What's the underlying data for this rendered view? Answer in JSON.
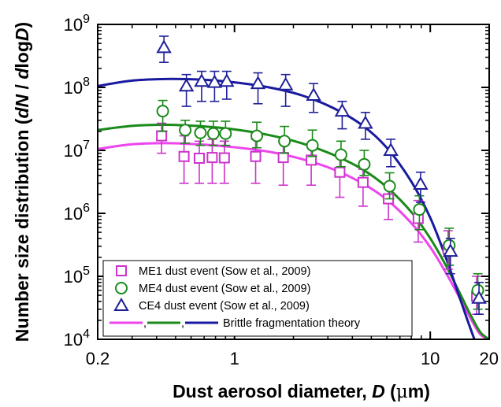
{
  "chart_data": {
    "type": "scatter",
    "xlabel": {
      "text": "Dust aerosol diameter, ",
      "var": "D",
      "unit_open": " (",
      "unit_mu": "μ",
      "unit_rest": "m)"
    },
    "ylabel": {
      "text": "Number size distribution (",
      "num": "dN",
      "sep": " / ",
      "den_pre": "d",
      "den_log": "log",
      "den_var": "D",
      "close": ")"
    },
    "x_scale": "log",
    "y_scale": "log",
    "xlim": [
      0.2,
      20
    ],
    "ylim": [
      10000,
      1000000000
    ],
    "x_ticks": [
      {
        "v": 0.2,
        "label": "0.2"
      },
      {
        "v": 1,
        "label": "1"
      },
      {
        "v": 10,
        "label": "10"
      },
      {
        "v": 20,
        "label": "20"
      }
    ],
    "y_ticks": [
      {
        "v": 10000,
        "base": "10",
        "exp": "4"
      },
      {
        "v": 100000,
        "base": "10",
        "exp": "5"
      },
      {
        "v": 1000000,
        "base": "10",
        "exp": "6"
      },
      {
        "v": 10000000,
        "base": "10",
        "exp": "7"
      },
      {
        "v": 100000000,
        "base": "10",
        "exp": "8"
      },
      {
        "v": 1000000000,
        "base": "10",
        "exp": "9"
      }
    ],
    "grid": false,
    "legend_position": "bottom-left",
    "series": [
      {
        "name": "ME1 dust event (Sow et al., 2009)",
        "marker": "square",
        "color": "#cc33cc",
        "x": [
          0.43,
          0.56,
          0.67,
          0.78,
          0.9,
          1.3,
          1.8,
          2.5,
          3.5,
          4.6,
          6.2,
          8.8,
          12.5,
          17.5
        ],
        "y": [
          17000000,
          8000000,
          7500000,
          7700000,
          7600000,
          8000000,
          7700000,
          7000000,
          4500000,
          3100000,
          1700000,
          830000,
          270000,
          48000
        ],
        "err": [
          [
            9000000,
            27000000
          ],
          [
            3000000,
            17000000
          ],
          [
            3000000,
            14000000
          ],
          [
            3000000,
            15000000
          ],
          [
            3000000,
            14000000
          ],
          [
            3000000,
            15000000
          ],
          [
            2800000,
            14000000
          ],
          [
            2800000,
            13000000
          ],
          [
            1800000,
            8000000
          ],
          [
            1300000,
            5000000
          ],
          [
            800000,
            3000000
          ],
          [
            350000,
            1600000
          ],
          [
            130000,
            530000
          ],
          [
            25000,
            100000
          ]
        ]
      },
      {
        "name": "ME4 dust event (Sow et al., 2009)",
        "marker": "circle",
        "color": "#1a8a1a",
        "x": [
          0.43,
          0.56,
          0.67,
          0.78,
          0.9,
          1.3,
          1.8,
          2.5,
          3.5,
          4.6,
          6.2,
          8.8,
          12.5,
          17.5
        ],
        "y": [
          42000000,
          21000000,
          19000000,
          18500000,
          18500000,
          17000000,
          14000000,
          12000000,
          8500000,
          6000000,
          2700000,
          1150000,
          310000,
          60000
        ],
        "err": [
          [
            20000000,
            62000000
          ],
          [
            13000000,
            30000000
          ],
          [
            12000000,
            29000000
          ],
          [
            12000000,
            29000000
          ],
          [
            12000000,
            29000000
          ],
          [
            11000000,
            28000000
          ],
          [
            9000000,
            24000000
          ],
          [
            8000000,
            21000000
          ],
          [
            5500000,
            14000000
          ],
          [
            4000000,
            10000000
          ],
          [
            1700000,
            4400000
          ],
          [
            550000,
            1900000
          ],
          [
            150000,
            580000
          ],
          [
            30000,
            110000
          ]
        ]
      },
      {
        "name": "CE4 dust event (Sow et al., 2009)",
        "marker": "triangle",
        "color": "#1f1f99",
        "x": [
          0.43,
          0.56,
          0.67,
          0.78,
          0.9,
          1.3,
          1.8,
          2.5,
          3.5,
          4.6,
          6.2,
          8.8,
          12.5,
          17.5
        ],
        "y": [
          430000000,
          105000000,
          125000000,
          120000000,
          125000000,
          115000000,
          110000000,
          75000000,
          42000000,
          27000000,
          10000000,
          2900000,
          250000,
          45000
        ],
        "err": [
          [
            250000000,
            650000000
          ],
          [
            50000000,
            160000000
          ],
          [
            60000000,
            180000000
          ],
          [
            60000000,
            180000000
          ],
          [
            65000000,
            180000000
          ],
          [
            55000000,
            170000000
          ],
          [
            50000000,
            160000000
          ],
          [
            40000000,
            115000000
          ],
          [
            22000000,
            60000000
          ],
          [
            15000000,
            40000000
          ],
          [
            5500000,
            15000000
          ],
          [
            1500000,
            4500000
          ],
          [
            110000,
            400000
          ],
          [
            25000,
            80000
          ]
        ]
      }
    ],
    "theory_label": "Brittle fragmentation theory",
    "theory_separators": [
      ",",
      ","
    ],
    "theory_curves": [
      {
        "color": "#ee44ee",
        "points": [
          [
            0.2,
            10500000
          ],
          [
            0.3,
            12500000
          ],
          [
            0.45,
            13000000
          ],
          [
            0.7,
            12300000
          ],
          [
            1.0,
            11200000
          ],
          [
            1.5,
            9500000
          ],
          [
            2.2,
            7300000
          ],
          [
            3.2,
            5000000
          ],
          [
            4.5,
            3000000
          ],
          [
            6.0,
            1650000
          ],
          [
            8.0,
            700000
          ],
          [
            10.0,
            290000
          ],
          [
            12.0,
            115000
          ],
          [
            14.0,
            48000
          ],
          [
            16.0,
            22000
          ],
          [
            18.0,
            12000
          ],
          [
            20.0,
            10000
          ]
        ]
      },
      {
        "color": "#1a8a1a",
        "points": [
          [
            0.2,
            21000000
          ],
          [
            0.3,
            24500000
          ],
          [
            0.45,
            25500000
          ],
          [
            0.7,
            24000000
          ],
          [
            1.0,
            21500000
          ],
          [
            1.5,
            17500000
          ],
          [
            2.2,
            13000000
          ],
          [
            3.2,
            8500000
          ],
          [
            4.5,
            5000000
          ],
          [
            6.0,
            2600000
          ],
          [
            8.0,
            1050000
          ],
          [
            10.0,
            400000
          ],
          [
            12.0,
            150000
          ],
          [
            14.0,
            58000
          ],
          [
            16.0,
            25000
          ],
          [
            18.0,
            13000
          ],
          [
            20.0,
            10000
          ]
        ]
      },
      {
        "color": "#1a1aa0",
        "points": [
          [
            0.2,
            105000000
          ],
          [
            0.3,
            128000000
          ],
          [
            0.45,
            136000000
          ],
          [
            0.7,
            132000000
          ],
          [
            1.0,
            120000000
          ],
          [
            1.5,
            100000000
          ],
          [
            2.2,
            75000000
          ],
          [
            3.2,
            47000000
          ],
          [
            4.5,
            25000000
          ],
          [
            6.0,
            11000000
          ],
          [
            8.0,
            3200000
          ],
          [
            10.0,
            850000
          ],
          [
            12.0,
            200000
          ],
          [
            14.0,
            50000
          ],
          [
            15.5,
            20000
          ],
          [
            16.8,
            10000
          ]
        ]
      }
    ]
  }
}
